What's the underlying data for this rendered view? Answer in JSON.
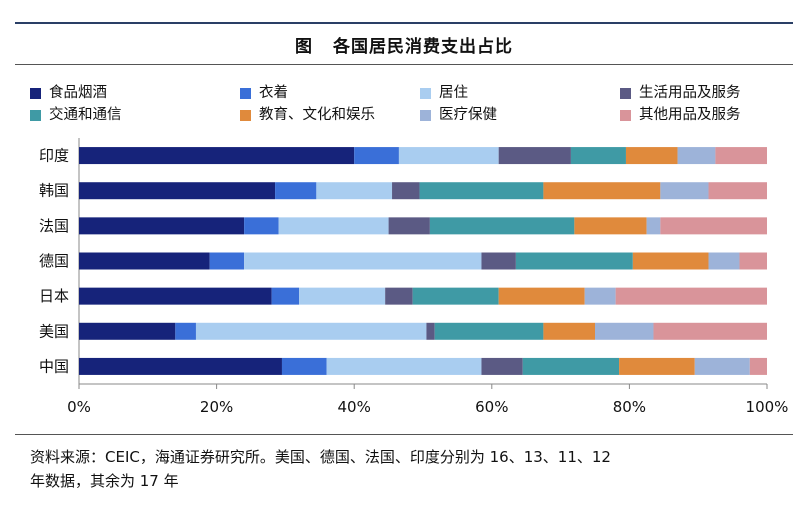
{
  "chart_data": {
    "type": "bar",
    "orientation": "horizontal",
    "stacked": true,
    "title_prefix": "图",
    "title": "各国居民消费支出占比",
    "categories": [
      "印度",
      "韩国",
      "法国",
      "德国",
      "日本",
      "美国",
      "中国"
    ],
    "series": [
      {
        "name": "食品烟酒",
        "color": "#16237a",
        "values": [
          40.0,
          28.5,
          24.0,
          19.0,
          28.0,
          14.0,
          29.5
        ]
      },
      {
        "name": "衣着",
        "color": "#3a6fd8",
        "values": [
          6.5,
          6.0,
          5.0,
          5.0,
          4.0,
          3.0,
          6.5
        ]
      },
      {
        "name": "居住",
        "color": "#a9cdf0",
        "values": [
          14.5,
          11.0,
          16.0,
          34.5,
          12.5,
          33.5,
          22.5
        ]
      },
      {
        "name": "生活用品及服务",
        "color": "#5b5a84",
        "values": [
          10.5,
          4.0,
          6.0,
          5.0,
          4.0,
          1.2,
          6.0
        ]
      },
      {
        "name": "交通和通信",
        "color": "#3f9aa5",
        "values": [
          8.0,
          18.0,
          21.0,
          17.0,
          12.5,
          15.8,
          14.0
        ]
      },
      {
        "name": "教育、文化和娱乐",
        "color": "#e08a3c",
        "values": [
          7.5,
          17.0,
          10.5,
          11.0,
          12.5,
          7.5,
          11.0
        ]
      },
      {
        "name": "医疗保健",
        "color": "#9db3d9",
        "values": [
          5.5,
          7.0,
          2.0,
          4.5,
          4.5,
          8.5,
          8.0
        ]
      },
      {
        "name": "其他用品及服务",
        "color": "#d9949a",
        "values": [
          7.5,
          8.5,
          15.5,
          4.0,
          22.0,
          16.5,
          2.5
        ]
      }
    ],
    "xlim": [
      0,
      100
    ],
    "xticks": [
      "0%",
      "20%",
      "40%",
      "60%",
      "80%",
      "100%"
    ],
    "legend": "top"
  },
  "footer": {
    "line1": "资料来源：CEIC，海通证券研究所。美国、德国、法国、印度分别为 16、13、11、12",
    "line2": "年数据，其余为 17 年"
  }
}
